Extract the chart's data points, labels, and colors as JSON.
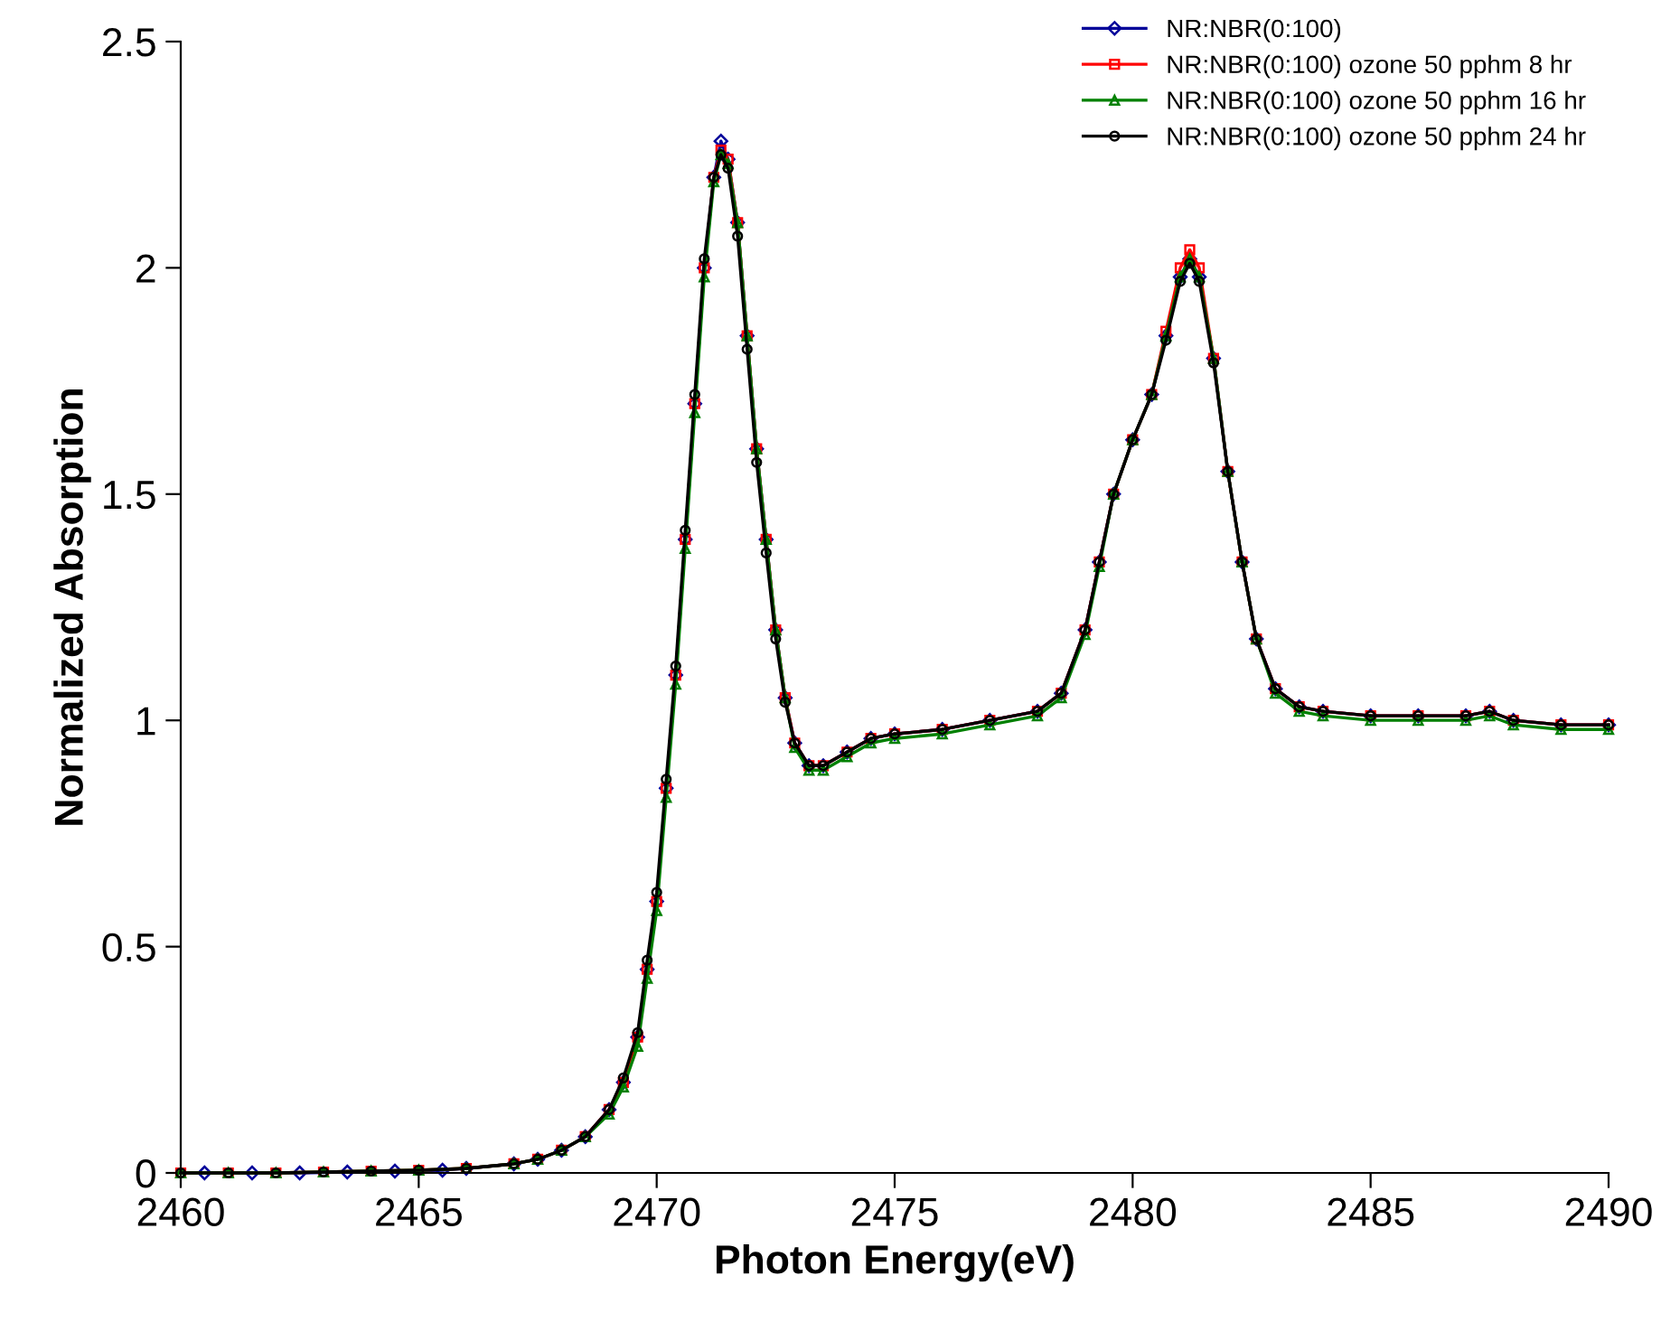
{
  "chart_data": {
    "type": "line",
    "xlabel": "Photon Energy(eV)",
    "ylabel": "Normalized Absorption",
    "xlim": [
      2460,
      2490
    ],
    "xticks": [
      2460,
      2465,
      2470,
      2475,
      2480,
      2485,
      2490
    ],
    "ylim": [
      0,
      2.5
    ],
    "yticks": [
      0,
      0.5,
      1,
      1.5,
      2,
      2.5
    ],
    "grid": false,
    "legend": "top right",
    "x": [
      2460,
      2461,
      2462,
      2463,
      2464,
      2465,
      2466,
      2467,
      2467.5,
      2468,
      2468.5,
      2469,
      2469.3,
      2469.6,
      2469.8,
      2470,
      2470.2,
      2470.4,
      2470.6,
      2470.8,
      2471,
      2471.2,
      2471.35,
      2471.5,
      2471.7,
      2471.9,
      2472.1,
      2472.3,
      2472.5,
      2472.7,
      2472.9,
      2473.2,
      2473.5,
      2474,
      2474.5,
      2475,
      2476,
      2477,
      2478,
      2478.5,
      2479,
      2479.3,
      2479.6,
      2480,
      2480.4,
      2480.7,
      2481,
      2481.2,
      2481.4,
      2481.7,
      2482,
      2482.3,
      2482.6,
      2483,
      2483.5,
      2484,
      2485,
      2486,
      2487,
      2487.5,
      2488,
      2489,
      2490
    ],
    "series": [
      {
        "name": "NR:NBR(0:100)",
        "color": "#000099",
        "marker": "diamond",
        "x": [
          2460.5,
          2461.5,
          2462.5,
          2463.5,
          2464.5,
          2465.5,
          2466,
          2467,
          2467.5,
          2468,
          2468.5,
          2469,
          2469.3,
          2469.6,
          2469.8,
          2470,
          2470.2,
          2470.4,
          2470.6,
          2470.8,
          2471,
          2471.2,
          2471.35,
          2471.5,
          2471.7,
          2471.9,
          2472.1,
          2472.3,
          2472.5,
          2472.7,
          2472.9,
          2473.2,
          2473.5,
          2474,
          2474.5,
          2475,
          2476,
          2477,
          2478,
          2478.5,
          2479,
          2479.3,
          2479.6,
          2480,
          2480.4,
          2480.7,
          2481,
          2481.2,
          2481.4,
          2481.7,
          2482,
          2482.3,
          2482.6,
          2483,
          2483.5,
          2484,
          2485,
          2486,
          2487,
          2487.5,
          2488,
          2489,
          2490
        ],
        "values": [
          0,
          0,
          0,
          0.002,
          0.004,
          0.006,
          0.01,
          0.02,
          0.03,
          0.05,
          0.08,
          0.14,
          0.2,
          0.3,
          0.45,
          0.6,
          0.85,
          1.1,
          1.4,
          1.7,
          2.0,
          2.2,
          2.28,
          2.24,
          2.1,
          1.85,
          1.6,
          1.4,
          1.2,
          1.05,
          0.95,
          0.9,
          0.9,
          0.93,
          0.96,
          0.97,
          0.98,
          1.0,
          1.02,
          1.06,
          1.2,
          1.35,
          1.5,
          1.62,
          1.72,
          1.85,
          1.98,
          2.02,
          1.98,
          1.8,
          1.55,
          1.35,
          1.18,
          1.07,
          1.03,
          1.02,
          1.01,
          1.01,
          1.01,
          1.02,
          1.0,
          0.99,
          0.99
        ]
      },
      {
        "name": "NR:NBR(0:100) ozone 50 pphm 8 hr",
        "color": "#ff0000",
        "marker": "square",
        "values": [
          0,
          0,
          0,
          0.002,
          0.004,
          0.006,
          0.01,
          0.02,
          0.03,
          0.05,
          0.08,
          0.14,
          0.2,
          0.3,
          0.45,
          0.6,
          0.85,
          1.1,
          1.4,
          1.7,
          2.0,
          2.2,
          2.26,
          2.24,
          2.1,
          1.85,
          1.6,
          1.4,
          1.2,
          1.05,
          0.95,
          0.9,
          0.9,
          0.93,
          0.96,
          0.97,
          0.98,
          1.0,
          1.02,
          1.06,
          1.2,
          1.35,
          1.5,
          1.62,
          1.72,
          1.86,
          2.0,
          2.04,
          2.0,
          1.8,
          1.55,
          1.35,
          1.18,
          1.07,
          1.03,
          1.02,
          1.01,
          1.01,
          1.01,
          1.02,
          1.0,
          0.99,
          0.99
        ]
      },
      {
        "name": "NR:NBR(0:100) ozone 50 pphm 16 hr",
        "color": "#008000",
        "marker": "triangle",
        "values": [
          0,
          0,
          0,
          0.002,
          0.004,
          0.006,
          0.01,
          0.02,
          0.03,
          0.05,
          0.08,
          0.13,
          0.19,
          0.28,
          0.43,
          0.58,
          0.83,
          1.08,
          1.38,
          1.68,
          1.98,
          2.19,
          2.25,
          2.23,
          2.1,
          1.85,
          1.6,
          1.4,
          1.2,
          1.05,
          0.94,
          0.89,
          0.89,
          0.92,
          0.95,
          0.96,
          0.97,
          0.99,
          1.01,
          1.05,
          1.19,
          1.34,
          1.5,
          1.62,
          1.72,
          1.85,
          1.98,
          2.02,
          1.98,
          1.8,
          1.55,
          1.35,
          1.18,
          1.06,
          1.02,
          1.01,
          1.0,
          1.0,
          1.0,
          1.01,
          0.99,
          0.98,
          0.98
        ]
      },
      {
        "name": "NR:NBR(0:100) ozone 50 pphm 24 hr",
        "color": "#000000",
        "marker": "circle",
        "values": [
          0,
          0,
          0,
          0.002,
          0.004,
          0.006,
          0.01,
          0.02,
          0.03,
          0.05,
          0.08,
          0.14,
          0.21,
          0.31,
          0.47,
          0.62,
          0.87,
          1.12,
          1.42,
          1.72,
          2.02,
          2.2,
          2.25,
          2.22,
          2.07,
          1.82,
          1.57,
          1.37,
          1.18,
          1.04,
          0.95,
          0.9,
          0.9,
          0.93,
          0.96,
          0.97,
          0.98,
          1.0,
          1.02,
          1.06,
          1.2,
          1.35,
          1.5,
          1.62,
          1.72,
          1.84,
          1.97,
          2.01,
          1.97,
          1.79,
          1.55,
          1.35,
          1.18,
          1.07,
          1.03,
          1.02,
          1.01,
          1.01,
          1.01,
          1.02,
          1.0,
          0.99,
          0.99
        ]
      }
    ]
  }
}
